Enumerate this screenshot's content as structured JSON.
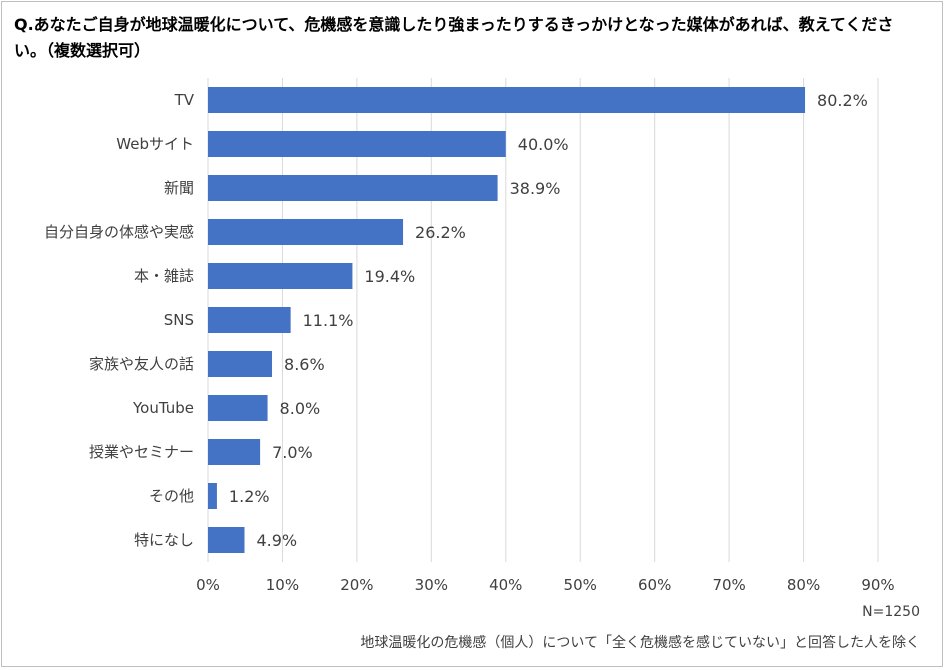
{
  "title": "Q.あなたご自身が地球温暖化について、危機感を意識したり強まったりするきっかけとなった媒体があれば、教えてください。（複数選択可）",
  "notes": {
    "n": "N=1250",
    "condition": "地球温暖化の危機感（個人）について「全く危機感を感じていない」と回答した人を除く"
  },
  "colors": {
    "bar": "#4472c4",
    "grid": "#d9d9d9"
  },
  "chart_data": {
    "type": "bar",
    "orientation": "horizontal",
    "categories": [
      "TV",
      "Webサイト",
      "新聞",
      "自分自身の体感や実感",
      "本・雑誌",
      "SNS",
      "家族や友人の話",
      "YouTube",
      "授業やセミナー",
      "その他",
      "特になし"
    ],
    "values": [
      80.2,
      40.0,
      38.9,
      26.2,
      19.4,
      11.1,
      8.6,
      8.0,
      7.0,
      1.2,
      4.9
    ],
    "value_labels": [
      "80.2%",
      "40.0%",
      "38.9%",
      "26.2%",
      "19.4%",
      "11.1%",
      "8.6%",
      "8.0%",
      "7.0%",
      "1.2%",
      "4.9%"
    ],
    "xlim": [
      0,
      90
    ],
    "xticks": [
      0,
      10,
      20,
      30,
      40,
      50,
      60,
      70,
      80,
      90
    ],
    "xtick_labels": [
      "0%",
      "10%",
      "20%",
      "30%",
      "40%",
      "50%",
      "60%",
      "70%",
      "80%",
      "90%"
    ],
    "grid": true,
    "legend": "none"
  }
}
